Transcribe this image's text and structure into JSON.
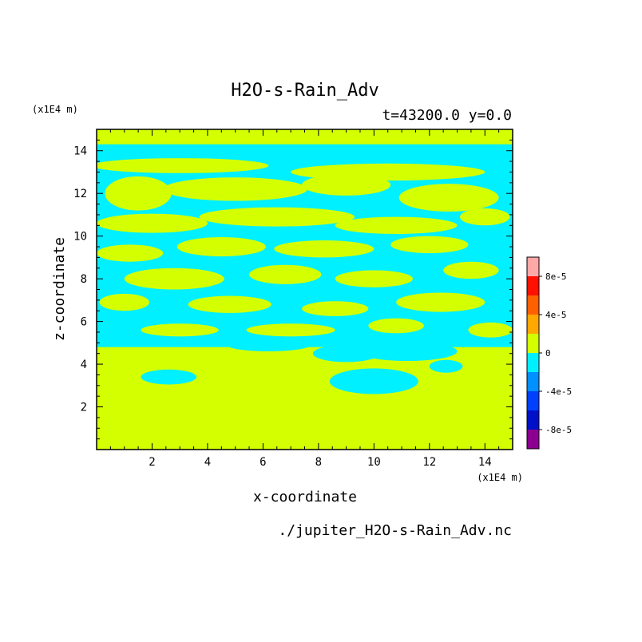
{
  "chart_data": {
    "type": "heatmap",
    "title": "H2O-s-Rain_Adv",
    "subtitle": "t=43200.0 y=0.0",
    "xlabel": "x-coordinate",
    "ylabel": "z-coordinate",
    "x_unit": "(x1E4 m)",
    "y_unit": "(x1E4 m)",
    "source_file": "./jupiter_H2O-s-Rain_Adv.nc",
    "xlim": [
      0,
      15
    ],
    "ylim": [
      0,
      15
    ],
    "x_ticks": [
      2,
      4,
      6,
      8,
      10,
      12,
      14
    ],
    "y_ticks": [
      2,
      4,
      6,
      8,
      10,
      12,
      14
    ],
    "x_tick_labels": [
      "2",
      "4",
      "6",
      "8",
      "10",
      "12",
      "14"
    ],
    "y_tick_labels": [
      "2",
      "4",
      "6",
      "8",
      "10",
      "12",
      "14"
    ],
    "colorbar": {
      "levels": [
        -0.0001,
        -8e-05,
        -6e-05,
        -4e-05,
        -2e-05,
        0,
        2e-05,
        4e-05,
        6e-05,
        8e-05,
        0.0001
      ],
      "colors": [
        "#8b0090",
        "#0010c8",
        "#0040ff",
        "#0090ff",
        "#00f0ff",
        "#d4ff00",
        "#ffa800",
        "#ff6000",
        "#ff1000",
        "#ffa8a8"
      ],
      "tick_values": [
        -8e-05,
        -4e-05,
        0,
        4e-05,
        8e-05
      ],
      "tick_labels": [
        "-8e-5",
        "-4e-5",
        "0",
        "4e-5",
        "8e-5"
      ]
    },
    "field": {
      "background_color": "#d4ff00",
      "negative_color": "#00f0ff",
      "negative_band_z": [
        4.8,
        14.3
      ],
      "negative_patches": [
        {
          "x": 2.6,
          "z": 3.4,
          "rx": 1.0,
          "rz": 0.35
        },
        {
          "x": 10.0,
          "z": 3.2,
          "rx": 1.6,
          "rz": 0.6
        },
        {
          "x": 9.0,
          "z": 4.5,
          "rx": 1.2,
          "rz": 0.4
        },
        {
          "x": 12.6,
          "z": 3.9,
          "rx": 0.6,
          "rz": 0.3
        },
        {
          "x": 11.2,
          "z": 4.6,
          "rx": 1.8,
          "rz": 0.45
        },
        {
          "x": 6.2,
          "z": 4.9,
          "rx": 1.5,
          "rz": 0.3
        }
      ],
      "positive_streaks": [
        {
          "x": 3.0,
          "z": 13.3,
          "rx": 3.2,
          "rz": 0.35
        },
        {
          "x": 10.5,
          "z": 13.0,
          "rx": 3.5,
          "rz": 0.4
        },
        {
          "x": 1.5,
          "z": 12.0,
          "rx": 1.2,
          "rz": 0.8
        },
        {
          "x": 5.0,
          "z": 12.2,
          "rx": 2.6,
          "rz": 0.55
        },
        {
          "x": 9.0,
          "z": 12.4,
          "rx": 1.6,
          "rz": 0.5
        },
        {
          "x": 12.7,
          "z": 11.8,
          "rx": 1.8,
          "rz": 0.65
        },
        {
          "x": 2.0,
          "z": 10.6,
          "rx": 2.0,
          "rz": 0.45
        },
        {
          "x": 6.5,
          "z": 10.9,
          "rx": 2.8,
          "rz": 0.45
        },
        {
          "x": 10.8,
          "z": 10.5,
          "rx": 2.2,
          "rz": 0.4
        },
        {
          "x": 14.0,
          "z": 10.9,
          "rx": 0.9,
          "rz": 0.4
        },
        {
          "x": 1.2,
          "z": 9.2,
          "rx": 1.2,
          "rz": 0.4
        },
        {
          "x": 4.5,
          "z": 9.5,
          "rx": 1.6,
          "rz": 0.45
        },
        {
          "x": 8.2,
          "z": 9.4,
          "rx": 1.8,
          "rz": 0.4
        },
        {
          "x": 12.0,
          "z": 9.6,
          "rx": 1.4,
          "rz": 0.4
        },
        {
          "x": 2.8,
          "z": 8.0,
          "rx": 1.8,
          "rz": 0.5
        },
        {
          "x": 6.8,
          "z": 8.2,
          "rx": 1.3,
          "rz": 0.45
        },
        {
          "x": 10.0,
          "z": 8.0,
          "rx": 1.4,
          "rz": 0.4
        },
        {
          "x": 13.5,
          "z": 8.4,
          "rx": 1.0,
          "rz": 0.4
        },
        {
          "x": 1.0,
          "z": 6.9,
          "rx": 0.9,
          "rz": 0.4
        },
        {
          "x": 4.8,
          "z": 6.8,
          "rx": 1.5,
          "rz": 0.4
        },
        {
          "x": 8.6,
          "z": 6.6,
          "rx": 1.2,
          "rz": 0.35
        },
        {
          "x": 12.4,
          "z": 6.9,
          "rx": 1.6,
          "rz": 0.45
        },
        {
          "x": 3.0,
          "z": 5.6,
          "rx": 1.4,
          "rz": 0.3
        },
        {
          "x": 7.0,
          "z": 5.6,
          "rx": 1.6,
          "rz": 0.3
        },
        {
          "x": 10.8,
          "z": 5.8,
          "rx": 1.0,
          "rz": 0.35
        },
        {
          "x": 14.2,
          "z": 5.6,
          "rx": 0.8,
          "rz": 0.35
        }
      ]
    }
  }
}
